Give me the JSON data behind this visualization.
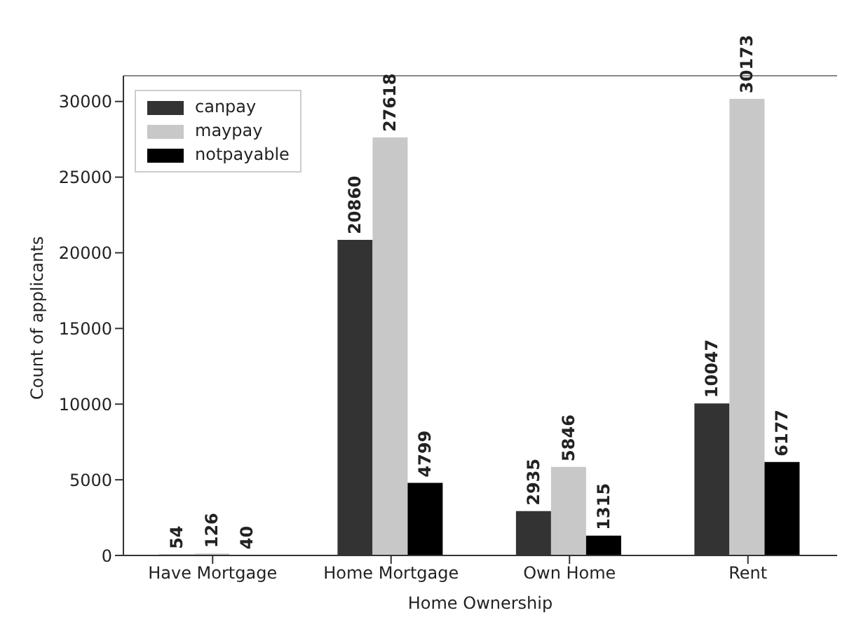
{
  "chart_data": {
    "type": "bar",
    "xlabel": "Home Ownership",
    "ylabel": "Count of applicants",
    "categories": [
      "Have Mortgage",
      "Home Mortgage",
      "Own Home",
      "Rent"
    ],
    "series": [
      {
        "name": "canpay",
        "color": "#333333",
        "values": [
          54,
          20860,
          2935,
          10047
        ]
      },
      {
        "name": "maypay",
        "color": "#c8c8c8",
        "values": [
          126,
          27618,
          5846,
          30173
        ]
      },
      {
        "name": "notpayable",
        "color": "#000000",
        "values": [
          40,
          4799,
          1315,
          6177
        ]
      }
    ],
    "ylim": [
      0,
      31700
    ],
    "yticks": [
      0,
      5000,
      10000,
      15000,
      20000,
      25000,
      30000
    ],
    "data_labels": true,
    "legend": "top left"
  }
}
